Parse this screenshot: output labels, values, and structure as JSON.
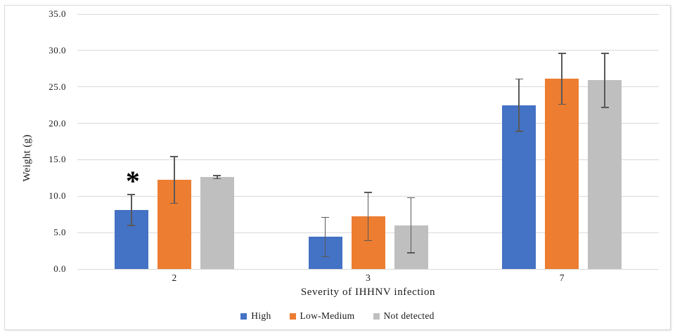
{
  "chart_data": {
    "type": "bar",
    "title": "",
    "xlabel": "Severity of IHHNV infection",
    "ylabel": "Weight (g)",
    "categories": [
      "2",
      "3",
      "7"
    ],
    "series": [
      {
        "name": "High",
        "color": "#4472c4",
        "values": [
          8.1,
          4.4,
          22.5
        ],
        "errors": [
          2.1,
          2.7,
          3.6
        ]
      },
      {
        "name": "Low-Medium",
        "color": "#ed7d31",
        "values": [
          12.2,
          7.2,
          26.1
        ],
        "errors": [
          3.2,
          3.3,
          3.5
        ]
      },
      {
        "name": "Not detected",
        "color": "#bfbfbf",
        "values": [
          12.6,
          6.0,
          25.9
        ],
        "errors": [
          0.2,
          3.8,
          3.7
        ]
      }
    ],
    "ylim": [
      0,
      35
    ],
    "ytick_step": 5,
    "ytick_labels": [
      "0.0",
      "5.0",
      "10.0",
      "15.0",
      "20.0",
      "25.0",
      "30.0",
      "35.0"
    ],
    "grid": true,
    "legend_position": "bottom-center",
    "error_bars": true,
    "annotations": [
      {
        "text": "*",
        "category_index": 0,
        "series_index": 0
      }
    ]
  },
  "colors": {
    "gridline": "#d9d9d9",
    "error_bar": "#595959",
    "text": "#1a1a1a",
    "border": "#d9d9d9",
    "background": "#ffffff"
  }
}
